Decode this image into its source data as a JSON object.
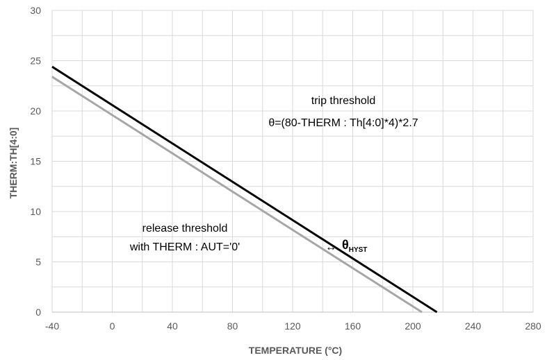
{
  "chart_data": {
    "type": "line",
    "xlabel": "TEMPERATURE (°C)",
    "ylabel": "THERM:TH[4:0]",
    "xlim": [
      -40,
      280
    ],
    "ylim": [
      0,
      30
    ],
    "x_ticks": [
      -40,
      0,
      40,
      80,
      120,
      160,
      200,
      240,
      280
    ],
    "y_ticks": [
      0,
      5,
      10,
      15,
      20,
      25,
      30
    ],
    "x_minor_step": 20,
    "y_minor_step": 2.5,
    "grid": true,
    "series": [
      {
        "color": "#000000",
        "x": [
          -40,
          216
        ],
        "y": [
          24.4,
          0
        ]
      },
      {
        "color": "#a6a6a6",
        "x": [
          -40,
          206
        ],
        "y": [
          23.4,
          0
        ]
      }
    ],
    "annotations": {
      "trip_line1": "trip threshold",
      "trip_line2": "θ=(80-THERM : Th[4:0]*4)*2.7",
      "release_line1": "release threshold",
      "release_line2": "with THERM : AUT='0'",
      "hyst_arrow": "↔",
      "hyst_symbol": "θ",
      "hyst_subscript": "HYST"
    }
  }
}
